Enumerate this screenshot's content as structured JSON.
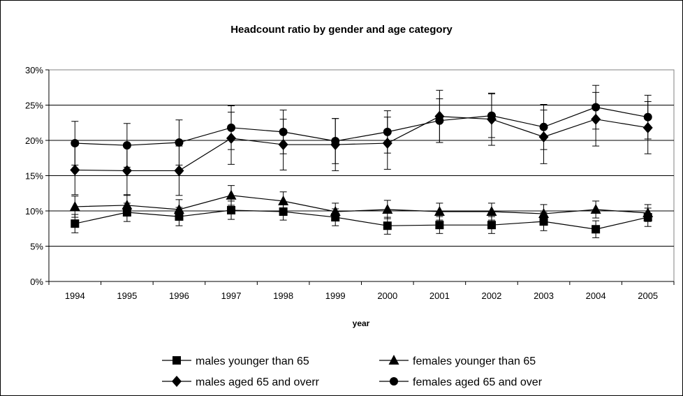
{
  "chart_data": {
    "type": "line",
    "title": "Headcount ratio by gender and age category",
    "xlabel": "year",
    "ylabel": "",
    "x": [
      "1994",
      "1995",
      "1996",
      "1997",
      "1998",
      "1999",
      "2000",
      "2001",
      "2002",
      "2003",
      "2004",
      "2005"
    ],
    "ylim": [
      0,
      0.3
    ],
    "yticks": [
      "0%",
      "5%",
      "10%",
      "15%",
      "20%",
      "25%",
      "30%"
    ],
    "grid": true,
    "legend_position": "bottom",
    "series": [
      {
        "name": "males younger than 65",
        "marker": "square",
        "values": [
          0.082,
          0.098,
          0.092,
          0.101,
          0.099,
          0.091,
          0.079,
          0.08,
          0.08,
          0.085,
          0.074,
          0.091
        ],
        "err": [
          0.013,
          0.013,
          0.013,
          0.013,
          0.012,
          0.012,
          0.012,
          0.012,
          0.012,
          0.013,
          0.012,
          0.013
        ]
      },
      {
        "name": "females younger than 65",
        "marker": "triangle",
        "values": [
          0.106,
          0.108,
          0.102,
          0.122,
          0.114,
          0.099,
          0.102,
          0.099,
          0.099,
          0.096,
          0.102,
          0.097
        ],
        "err": [
          0.015,
          0.015,
          0.014,
          0.014,
          0.013,
          0.012,
          0.013,
          0.012,
          0.012,
          0.013,
          0.012,
          0.012
        ]
      },
      {
        "name": "males aged 65 and overr",
        "marker": "diamond",
        "values": [
          0.158,
          0.157,
          0.157,
          0.203,
          0.194,
          0.194,
          0.196,
          0.234,
          0.23,
          0.205,
          0.23,
          0.218
        ],
        "err": [
          0.035,
          0.035,
          0.035,
          0.037,
          0.036,
          0.037,
          0.037,
          0.037,
          0.037,
          0.038,
          0.038,
          0.037
        ]
      },
      {
        "name": "females aged 65 and over",
        "marker": "circle",
        "values": [
          0.196,
          0.193,
          0.197,
          0.218,
          0.212,
          0.199,
          0.212,
          0.228,
          0.235,
          0.219,
          0.247,
          0.233
        ],
        "err": [
          0.031,
          0.031,
          0.032,
          0.031,
          0.031,
          0.032,
          0.03,
          0.031,
          0.031,
          0.032,
          0.031,
          0.031
        ]
      }
    ]
  }
}
